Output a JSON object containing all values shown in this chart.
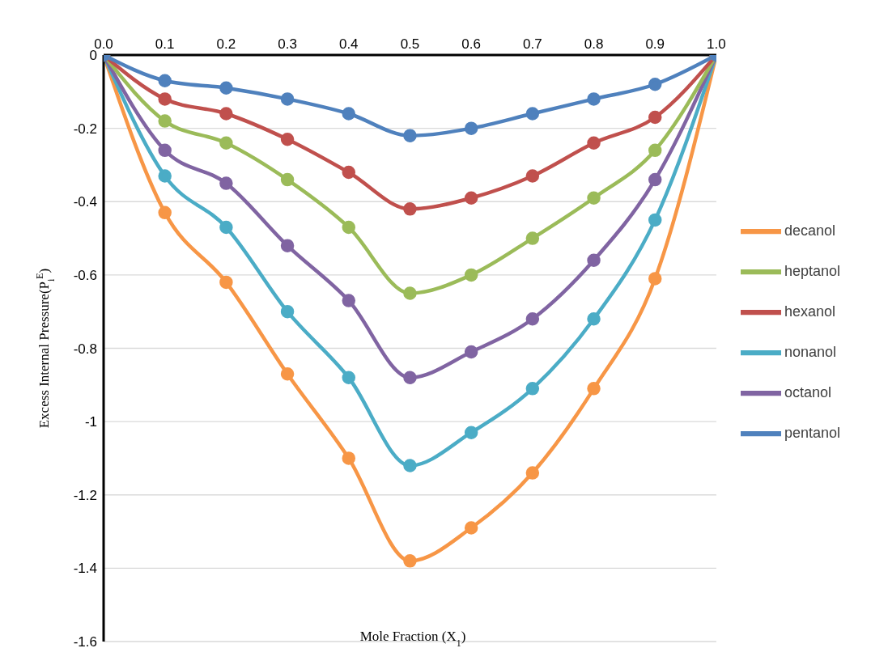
{
  "chart_data": {
    "type": "line",
    "xlabel": "Mole Fraction (X$_{1}$)",
    "ylabel": "Excess Internal Pressure(P$_{i}$$^{E}$)",
    "x": [
      0,
      0.1,
      0.2,
      0.3,
      0.4,
      0.5,
      0.6,
      0.7,
      0.8,
      0.9,
      1.0
    ],
    "xlim": [
      0,
      1
    ],
    "xticks": [
      {
        "value": 0,
        "label": "0.0"
      },
      {
        "value": 0.1,
        "label": "0.1"
      },
      {
        "value": 0.2,
        "label": "0.2"
      },
      {
        "value": 0.3,
        "label": "0.3"
      },
      {
        "value": 0.4,
        "label": "0.4"
      },
      {
        "value": 0.5,
        "label": "0.5"
      },
      {
        "value": 0.6,
        "label": "0.6"
      },
      {
        "value": 0.7,
        "label": "0.7"
      },
      {
        "value": 0.8,
        "label": "0.8"
      },
      {
        "value": 0.9,
        "label": "0.9"
      },
      {
        "value": 1,
        "label": "1.0"
      }
    ],
    "ylim": [
      -1.6,
      0
    ],
    "yticks": [
      -1.6,
      -1.4,
      -1.2,
      -1,
      -0.8,
      -0.6,
      -0.4,
      -0.2,
      0
    ],
    "grid": "y",
    "legend": "right",
    "marker": "circle",
    "line_style": "solid",
    "series": [
      {
        "name": "decanol",
        "color": "#f79646",
        "values": [
          0,
          -0.43,
          -0.62,
          -0.87,
          -1.1,
          -1.38,
          -1.29,
          -1.14,
          -0.91,
          -0.61,
          0
        ]
      },
      {
        "name": "nonanol",
        "color": "#4bacc6",
        "values": [
          0,
          -0.33,
          -0.47,
          -0.7,
          -0.88,
          -1.12,
          -1.03,
          -0.91,
          -0.72,
          -0.45,
          0
        ]
      },
      {
        "name": "octanol",
        "color": "#8064a2",
        "values": [
          0,
          -0.26,
          -0.35,
          -0.52,
          -0.67,
          -0.88,
          -0.81,
          -0.72,
          -0.56,
          -0.34,
          0
        ]
      },
      {
        "name": "heptanol",
        "color": "#9bbb59",
        "values": [
          0,
          -0.18,
          -0.24,
          -0.34,
          -0.47,
          -0.65,
          -0.6,
          -0.5,
          -0.39,
          -0.26,
          0
        ]
      },
      {
        "name": "hexanol",
        "color": "#c0504d",
        "values": [
          0,
          -0.12,
          -0.16,
          -0.23,
          -0.32,
          -0.42,
          -0.39,
          -0.33,
          -0.24,
          -0.17,
          0
        ]
      },
      {
        "name": "pentanol",
        "color": "#4f81bd",
        "values": [
          0,
          -0.07,
          -0.09,
          -0.12,
          -0.16,
          -0.22,
          -0.2,
          -0.16,
          -0.12,
          -0.08,
          0
        ]
      }
    ]
  }
}
